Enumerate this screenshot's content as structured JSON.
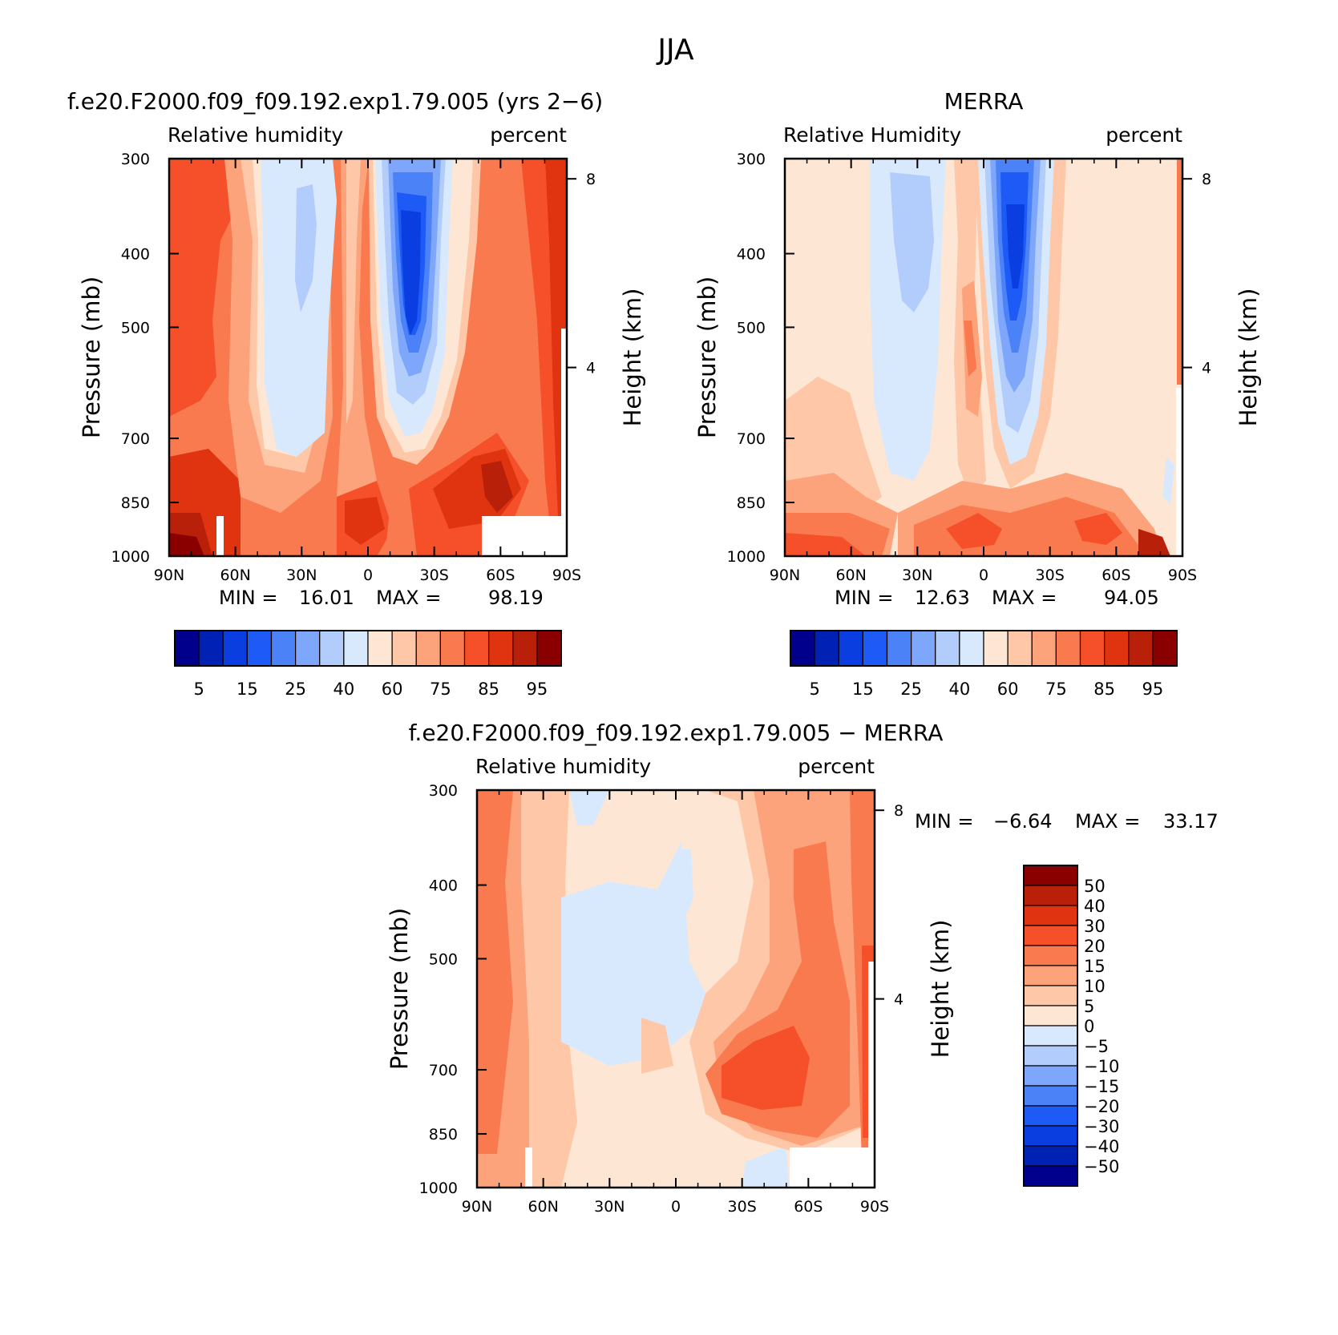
{
  "page": {
    "title": "JJA"
  },
  "panels": [
    {
      "id": "model",
      "title": "f.e20.F2000.f09_f09.192.exp1.79.005 (yrs 2−6)",
      "left_label": "Relative humidity",
      "right_label": "percent",
      "stats": {
        "min_label": "MIN =",
        "min": "16.01",
        "max_label": "MAX =",
        "max": "98.19"
      },
      "colorbar": {
        "labels": [
          "5",
          "15",
          "25",
          "40",
          "60",
          "75",
          "85",
          "95"
        ],
        "colors": [
          "#00008c",
          "#0022b4",
          "#0a3ee0",
          "#1e5af5",
          "#4b82f8",
          "#7ea6fa",
          "#b2cdfc",
          "#d9e9fd",
          "#fde6d3",
          "#fdc7a8",
          "#fca37b",
          "#f97a4e",
          "#f5502a",
          "#e0330f",
          "#b8200a",
          "#8a0000"
        ]
      }
    },
    {
      "id": "merra",
      "title": "MERRA",
      "left_label": "Relative Humidity",
      "right_label": "percent",
      "stats": {
        "min_label": "MIN =",
        "min": "12.63",
        "max_label": "MAX =",
        "max": "94.05"
      },
      "colorbar": {
        "labels": [
          "5",
          "15",
          "25",
          "40",
          "60",
          "75",
          "85",
          "95"
        ],
        "colors": [
          "#00008c",
          "#0022b4",
          "#0a3ee0",
          "#1e5af5",
          "#4b82f8",
          "#7ea6fa",
          "#b2cdfc",
          "#d9e9fd",
          "#fde6d3",
          "#fdc7a8",
          "#fca37b",
          "#f97a4e",
          "#f5502a",
          "#e0330f",
          "#b8200a",
          "#8a0000"
        ]
      }
    },
    {
      "id": "diff",
      "title": "f.e20.F2000.f09_f09.192.exp1.79.005 − MERRA",
      "left_label": "Relative humidity",
      "right_label": "percent",
      "stats": {
        "min_label": "MIN =",
        "min": "−6.64",
        "max_label": "MAX =",
        "max": "33.17"
      },
      "colorbar": {
        "labels": [
          "50",
          "40",
          "30",
          "20",
          "15",
          "10",
          "5",
          "0",
          "−5",
          "−10",
          "−15",
          "−20",
          "−30",
          "−40",
          "−50"
        ],
        "colors": [
          "#8a0000",
          "#b8200a",
          "#e0330f",
          "#f5502a",
          "#f97a4e",
          "#fca37b",
          "#fdc7a8",
          "#fde6d3",
          "#d9e9fd",
          "#b2cdfc",
          "#7ea6fa",
          "#4b82f8",
          "#1e5af5",
          "#0a3ee0",
          "#0022b4",
          "#00008c"
        ]
      }
    }
  ],
  "axes": {
    "x_ticks": [
      "90N",
      "60N",
      "30N",
      "0",
      "30S",
      "60S",
      "90S"
    ],
    "y_label": "Pressure (mb)",
    "y_ticks": [
      "300",
      "400",
      "500",
      "700",
      "850",
      "1000"
    ],
    "y2_label": "Height (km)",
    "y2_ticks": [
      "8",
      "4"
    ]
  },
  "chart_data": [
    {
      "type": "heatmap",
      "title": "f.e20.F2000.f09_f09.192.exp1.79.005 (yrs 2−6)",
      "variable": "Relative humidity",
      "units": "percent",
      "xlabel": "",
      "ylabel": "Pressure (mb)",
      "y2label": "Height (km)",
      "x": [
        "90N",
        "60N",
        "30N",
        "0",
        "30S",
        "60S",
        "90S"
      ],
      "y": [
        300,
        400,
        500,
        700,
        850,
        1000
      ],
      "min": 16.01,
      "max": 98.19,
      "levels": [
        5,
        10,
        15,
        20,
        25,
        30,
        40,
        50,
        60,
        70,
        75,
        80,
        85,
        90,
        95
      ]
    },
    {
      "type": "heatmap",
      "title": "MERRA",
      "variable": "Relative Humidity",
      "units": "percent",
      "xlabel": "",
      "ylabel": "Pressure (mb)",
      "y2label": "Height (km)",
      "x": [
        "90N",
        "60N",
        "30N",
        "0",
        "30S",
        "60S",
        "90S"
      ],
      "y": [
        300,
        400,
        500,
        700,
        850,
        1000
      ],
      "min": 12.63,
      "max": 94.05,
      "levels": [
        5,
        10,
        15,
        20,
        25,
        30,
        40,
        50,
        60,
        70,
        75,
        80,
        85,
        90,
        95
      ]
    },
    {
      "type": "heatmap",
      "title": "f.e20.F2000.f09_f09.192.exp1.79.005 − MERRA",
      "variable": "Relative humidity",
      "units": "percent",
      "xlabel": "",
      "ylabel": "Pressure (mb)",
      "y2label": "Height (km)",
      "x": [
        "90N",
        "60N",
        "30N",
        "0",
        "30S",
        "60S",
        "90S"
      ],
      "y": [
        300,
        400,
        500,
        700,
        850,
        1000
      ],
      "min": -6.64,
      "max": 33.17,
      "levels": [
        -50,
        -40,
        -30,
        -20,
        -15,
        -10,
        -5,
        0,
        5,
        10,
        15,
        20,
        30,
        40,
        50
      ]
    }
  ]
}
